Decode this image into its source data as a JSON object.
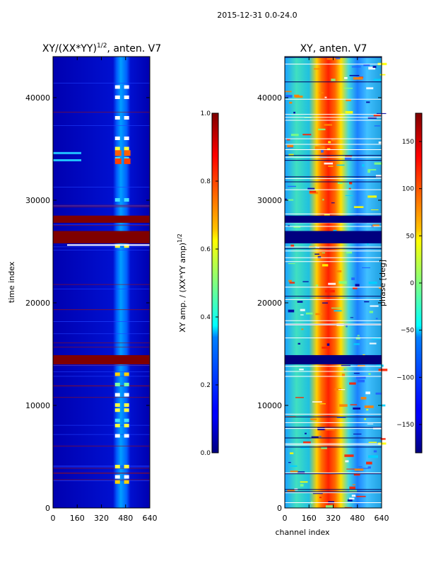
{
  "suptitle": "2015-12-31 0.0-24.0",
  "chart_data": [
    {
      "type": "heatmap",
      "title": "XY/(XX*YY)^{1/2}, anten. V7",
      "title_main": "XY/(XX*YY)",
      "title_sup": "1/2",
      "title_tail": ", anten. V7",
      "xlabel": "",
      "ylabel": "time index",
      "xlim": [
        0,
        640
      ],
      "ylim": [
        0,
        44000
      ],
      "xticks": [
        0,
        160,
        320,
        480,
        640
      ],
      "yticks": [
        0,
        10000,
        20000,
        30000,
        40000
      ],
      "colormap": "jet",
      "flagged_time_bands": [
        [
          14000,
          14900
        ],
        [
          25800,
          27000
        ],
        [
          27800,
          28500
        ]
      ],
      "bright_channel_band": [
        420,
        500
      ],
      "colorbar": {
        "label": "XY amp. / (XX*YY amp)^{1/2}",
        "label_main": "XY amp. / (XX*YY amp)",
        "label_sup": "1/2",
        "range": [
          0.0,
          1.0
        ],
        "ticks": [
          "0.0",
          "0.2",
          "0.4",
          "0.6",
          "0.8",
          "1.0"
        ]
      }
    },
    {
      "type": "heatmap",
      "title": "XY, anten. V7",
      "xlabel": "channel index",
      "ylabel": "",
      "xlim": [
        0,
        640
      ],
      "ylim": [
        0,
        44000
      ],
      "xticks": [
        0,
        160,
        320,
        480,
        640
      ],
      "yticks": [
        0,
        10000,
        20000,
        30000,
        40000
      ],
      "colormap": "jet",
      "flagged_time_bands": [
        [
          14000,
          14900
        ],
        [
          25800,
          27000
        ],
        [
          27800,
          28500
        ]
      ],
      "phase_hot_band": [
        220,
        360
      ],
      "colorbar": {
        "label": "phase [deg]",
        "range": [
          -180,
          180
        ],
        "ticks": [
          "−150",
          "−100",
          "−50",
          "0",
          "50",
          "100",
          "150"
        ]
      }
    }
  ],
  "colors": {
    "jet_dark_blue": "#00007f",
    "jet_blue": "#0000ff",
    "jet_cyan": "#00ffff",
    "jet_yellow": "#ffff00",
    "jet_red": "#ff0000",
    "jet_dark_red": "#7f0000"
  }
}
